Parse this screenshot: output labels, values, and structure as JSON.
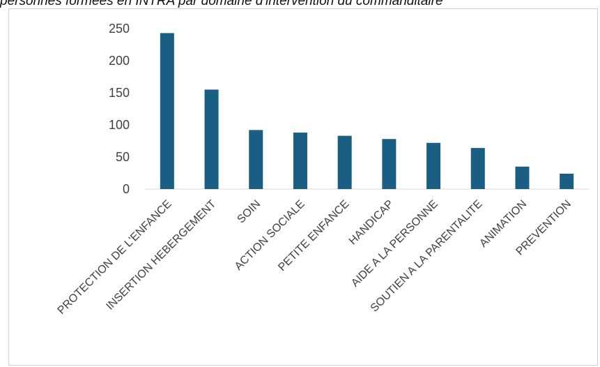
{
  "chart_data": {
    "type": "bar",
    "title": "personnes formées en INTRA par domaine d'intervention du commanditaire",
    "xlabel": "",
    "ylabel": "",
    "ylim": [
      0,
      250
    ],
    "y_ticks": [
      0,
      50,
      100,
      150,
      200,
      250
    ],
    "grid": false,
    "legend": "none",
    "bar_color": "#1a5e83",
    "categories": [
      "PROTECTION DE L'ENFANCE",
      "INSERTION HEBERGEMENT",
      "SOIN",
      "ACTION SOCIALE",
      "PETITE ENFANCE",
      "HANDICAP",
      "AIDE A LA PERSONNE",
      "SOUTIEN A LA PARENTALITE",
      "ANIMATION",
      "PREVENTION"
    ],
    "values": [
      243,
      155,
      92,
      88,
      83,
      78,
      72,
      64,
      35,
      24
    ]
  }
}
